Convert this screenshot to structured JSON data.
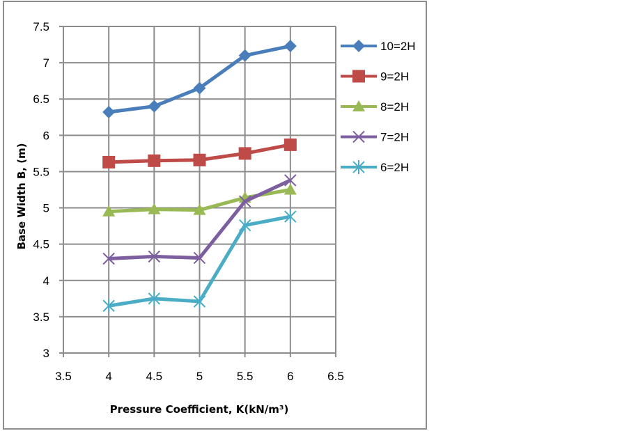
{
  "chart_data": {
    "type": "line",
    "title": "",
    "xlabel": "Pressure Coefficient, K(kN/m³)",
    "ylabel": "Base Width B, (m)",
    "xlim": [
      3.5,
      6.5
    ],
    "ylim": [
      3,
      7.5
    ],
    "x_ticks": [
      "3.5",
      "4",
      "4.5",
      "5",
      "5.5",
      "6",
      "6.5"
    ],
    "y_ticks": [
      "3",
      "3.5",
      "4",
      "4.5",
      "5",
      "5.5",
      "6",
      "6.5",
      "7",
      "7.5"
    ],
    "grid": true,
    "legend_position": "right",
    "x": [
      4,
      4.5,
      5,
      5.5,
      6
    ],
    "series": [
      {
        "name": "10=2H",
        "marker": "diamond",
        "color": "#4A7EBB",
        "values": [
          6.32,
          6.4,
          6.65,
          7.1,
          7.23
        ]
      },
      {
        "name": "9=2H",
        "marker": "square",
        "color": "#BE4B48",
        "values": [
          5.63,
          5.65,
          5.66,
          5.75,
          5.87
        ]
      },
      {
        "name": "8=2H",
        "marker": "triangle",
        "color": "#98B954",
        "values": [
          4.95,
          4.98,
          4.97,
          5.14,
          5.25
        ]
      },
      {
        "name": "7=2H",
        "marker": "x",
        "color": "#7D5FA0",
        "values": [
          4.3,
          4.33,
          4.31,
          5.09,
          5.38
        ]
      },
      {
        "name": "6=2H",
        "marker": "star",
        "color": "#4BACC6",
        "values": [
          3.65,
          3.75,
          3.71,
          4.76,
          4.88
        ]
      }
    ]
  }
}
